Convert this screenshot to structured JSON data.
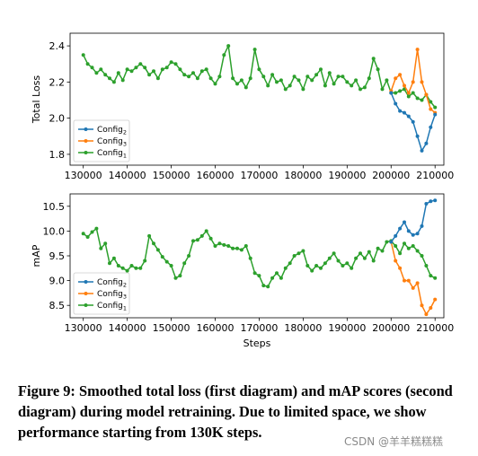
{
  "colors": {
    "config2": "#1f77b4",
    "config3": "#ff7f0e",
    "config1": "#2ca02c"
  },
  "figure": {
    "caption": "Figure 9: Smoothed total loss (first diagram) and mAP scores (second diagram) during model retraining. Due to limited space, we show performance starting from 130K steps.",
    "watermark": "CSDN @羊羊糕糕糕"
  },
  "chart_data": [
    {
      "type": "line",
      "ylabel": "Total Loss",
      "xlabel": "",
      "xlim": [
        127000,
        212000
      ],
      "ylim": [
        1.74,
        2.47
      ],
      "x_ticks": [
        130000,
        140000,
        150000,
        160000,
        170000,
        180000,
        190000,
        200000,
        210000
      ],
      "y_ticks": [
        1.8,
        2.0,
        2.2,
        2.4
      ],
      "x_tick_labels": [
        "130000",
        "140000",
        "150000",
        "160000",
        "170000",
        "180000",
        "190000",
        "200000",
        "210000"
      ],
      "y_tick_labels": [
        "1.8",
        "2.0",
        "2.2",
        "2.4"
      ],
      "legend": {
        "position": "lower-left",
        "entries": [
          {
            "key": "config2",
            "base": "Config",
            "sub": "2"
          },
          {
            "key": "config3",
            "base": "Config",
            "sub": "3"
          },
          {
            "key": "config1",
            "base": "Config",
            "sub": "1"
          }
        ]
      },
      "series": [
        {
          "key": "config1",
          "x": [
            130000,
            131000,
            132000,
            133000,
            134000,
            135000,
            136000,
            137000,
            138000,
            139000,
            140000,
            141000,
            142000,
            143000,
            144000,
            145000,
            146000,
            147000,
            148000,
            149000,
            150000,
            151000,
            152000,
            153000,
            154000,
            155000,
            156000,
            157000,
            158000,
            159000,
            160000,
            161000,
            162000,
            163000,
            164000,
            165000,
            166000,
            167000,
            168000,
            169000,
            170000,
            171000,
            172000,
            173000,
            174000,
            175000,
            176000,
            177000,
            178000,
            179000,
            180000,
            181000,
            182000,
            183000,
            184000,
            185000,
            186000,
            187000,
            188000,
            189000,
            190000,
            191000,
            192000,
            193000,
            194000,
            195000,
            196000,
            197000,
            198000,
            199000,
            200000,
            201000,
            202000,
            203000,
            204000,
            205000,
            206000,
            207000,
            208000,
            209000,
            210000
          ],
          "values": [
            2.35,
            2.3,
            2.28,
            2.25,
            2.27,
            2.24,
            2.22,
            2.2,
            2.25,
            2.21,
            2.27,
            2.26,
            2.28,
            2.3,
            2.28,
            2.24,
            2.26,
            2.22,
            2.27,
            2.28,
            2.31,
            2.3,
            2.27,
            2.24,
            2.23,
            2.25,
            2.22,
            2.26,
            2.27,
            2.22,
            2.19,
            2.23,
            2.35,
            2.4,
            2.22,
            2.19,
            2.21,
            2.17,
            2.22,
            2.38,
            2.27,
            2.23,
            2.18,
            2.24,
            2.2,
            2.21,
            2.16,
            2.18,
            2.23,
            2.21,
            2.16,
            2.23,
            2.21,
            2.24,
            2.27,
            2.18,
            2.25,
            2.19,
            2.23,
            2.23,
            2.2,
            2.18,
            2.21,
            2.16,
            2.17,
            2.22,
            2.33,
            2.27,
            2.16,
            2.21,
            2.14,
            2.14,
            2.15,
            2.16,
            2.12,
            2.14,
            2.11,
            2.1,
            2.13,
            2.09,
            2.06
          ]
        },
        {
          "key": "config3",
          "x": [
            200000,
            201000,
            202000,
            203000,
            204000,
            205000,
            206000,
            207000,
            208000,
            209000,
            210000
          ],
          "values": [
            2.15,
            2.22,
            2.24,
            2.18,
            2.14,
            2.2,
            2.38,
            2.2,
            2.13,
            2.05,
            2.03
          ]
        },
        {
          "key": "config2",
          "x": [
            200000,
            201000,
            202000,
            203000,
            204000,
            205000,
            206000,
            207000,
            208000,
            209000,
            210000
          ],
          "values": [
            2.14,
            2.08,
            2.04,
            2.03,
            2.01,
            1.98,
            1.9,
            1.82,
            1.86,
            1.95,
            2.02
          ]
        }
      ]
    },
    {
      "type": "line",
      "ylabel": "mAP",
      "xlabel": "Steps",
      "xlim": [
        127000,
        212000
      ],
      "ylim": [
        8.25,
        10.75
      ],
      "x_ticks": [
        130000,
        140000,
        150000,
        160000,
        170000,
        180000,
        190000,
        200000,
        210000
      ],
      "y_ticks": [
        8.5,
        9.0,
        9.5,
        10.0,
        10.5
      ],
      "x_tick_labels": [
        "130000",
        "140000",
        "150000",
        "160000",
        "170000",
        "180000",
        "190000",
        "200000",
        "210000"
      ],
      "y_tick_labels": [
        "8.5",
        "9.0",
        "9.5",
        "10.0",
        "10.5"
      ],
      "legend": {
        "position": "lower-left",
        "entries": [
          {
            "key": "config2",
            "base": "Config",
            "sub": "2"
          },
          {
            "key": "config3",
            "base": "Config",
            "sub": "3"
          },
          {
            "key": "config1",
            "base": "Config",
            "sub": "1"
          }
        ]
      },
      "series": [
        {
          "key": "config1",
          "x": [
            130000,
            131000,
            132000,
            133000,
            134000,
            135000,
            136000,
            137000,
            138000,
            139000,
            140000,
            141000,
            142000,
            143000,
            144000,
            145000,
            146000,
            147000,
            148000,
            149000,
            150000,
            151000,
            152000,
            153000,
            154000,
            155000,
            156000,
            157000,
            158000,
            159000,
            160000,
            161000,
            162000,
            163000,
            164000,
            165000,
            166000,
            167000,
            168000,
            169000,
            170000,
            171000,
            172000,
            173000,
            174000,
            175000,
            176000,
            177000,
            178000,
            179000,
            180000,
            181000,
            182000,
            183000,
            184000,
            185000,
            186000,
            187000,
            188000,
            189000,
            190000,
            191000,
            192000,
            193000,
            194000,
            195000,
            196000,
            197000,
            198000,
            199000,
            200000,
            201000,
            202000,
            203000,
            204000,
            205000,
            206000,
            207000,
            208000,
            209000,
            210000
          ],
          "values": [
            9.95,
            9.88,
            9.98,
            10.05,
            9.65,
            9.75,
            9.35,
            9.45,
            9.3,
            9.25,
            9.2,
            9.3,
            9.25,
            9.25,
            9.4,
            9.9,
            9.75,
            9.62,
            9.48,
            9.38,
            9.3,
            9.05,
            9.1,
            9.35,
            9.5,
            9.8,
            9.82,
            9.9,
            10.0,
            9.85,
            9.7,
            9.75,
            9.72,
            9.7,
            9.65,
            9.65,
            9.62,
            9.7,
            9.45,
            9.15,
            9.1,
            8.9,
            8.88,
            9.05,
            9.15,
            9.05,
            9.25,
            9.35,
            9.5,
            9.55,
            9.6,
            9.3,
            9.2,
            9.3,
            9.25,
            9.35,
            9.45,
            9.55,
            9.4,
            9.3,
            9.35,
            9.25,
            9.45,
            9.55,
            9.45,
            9.58,
            9.4,
            9.65,
            9.6,
            9.78,
            9.8,
            9.7,
            9.55,
            9.75,
            9.65,
            9.7,
            9.6,
            9.5,
            9.3,
            9.1,
            9.05
          ]
        },
        {
          "key": "config3",
          "x": [
            200000,
            201000,
            202000,
            203000,
            204000,
            205000,
            206000,
            207000,
            208000,
            209000,
            210000
          ],
          "values": [
            9.78,
            9.4,
            9.25,
            9.0,
            9.0,
            8.85,
            8.95,
            8.5,
            8.32,
            8.45,
            8.62
          ]
        },
        {
          "key": "config2",
          "x": [
            200000,
            201000,
            202000,
            203000,
            204000,
            205000,
            206000,
            207000,
            208000,
            209000,
            210000
          ],
          "values": [
            9.78,
            9.9,
            10.05,
            10.18,
            10.0,
            9.92,
            9.95,
            10.1,
            10.55,
            10.6,
            10.62
          ]
        }
      ]
    }
  ]
}
